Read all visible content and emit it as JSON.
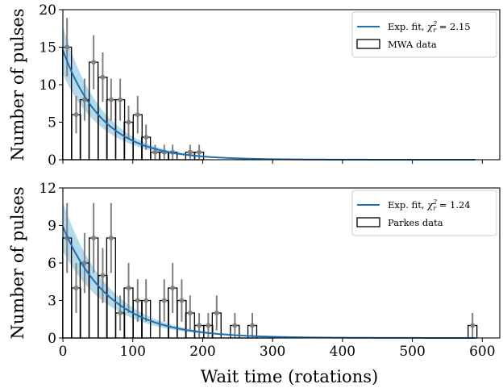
{
  "chart_data": [
    {
      "type": "bar",
      "panel": "top",
      "xlabel": "",
      "ylabel": "Number of pulses",
      "xlim": [
        0,
        625
      ],
      "ylim": [
        0,
        20
      ],
      "yticks": [
        "0",
        "5",
        "10",
        "15",
        "20"
      ],
      "bin_width": 12.6,
      "bins": {
        "x": [
          6,
          19,
          31,
          44,
          57,
          69,
          82,
          94,
          107,
          119,
          132,
          145,
          157,
          170,
          182,
          195
        ],
        "values": [
          15,
          6,
          8,
          13,
          11,
          8,
          8,
          5,
          6,
          3,
          1,
          1,
          1,
          0,
          1,
          1
        ],
        "errors": [
          3.9,
          2.5,
          2.8,
          3.6,
          3.3,
          2.8,
          2.8,
          2.2,
          2.5,
          1.7,
          1,
          1,
          1,
          0,
          1,
          1
        ]
      },
      "fit": {
        "amplitude": 14.6,
        "scale": 57.0,
        "band_fraction": 0.22,
        "x_end": 590
      },
      "legend": {
        "position": "upper right",
        "fit_label": "Exp. fit, ",
        "fit_chi": "2.15",
        "data_label": "MWA data"
      },
      "colors": {
        "fit": "#1f6fb2",
        "band": "#a7d3ea",
        "steps": "#000000",
        "points": "#808080"
      }
    },
    {
      "type": "bar",
      "panel": "bottom",
      "xlabel": "Wait time (rotations)",
      "ylabel": "Number of pulses",
      "xlim": [
        0,
        625
      ],
      "ylim": [
        0,
        12
      ],
      "yticks": [
        "0",
        "3",
        "6",
        "9",
        "12"
      ],
      "xticks": [
        "0",
        "100",
        "200",
        "300",
        "400",
        "500",
        "600"
      ],
      "bin_width": 12.6,
      "bins": {
        "x": [
          6,
          19,
          31,
          44,
          57,
          69,
          82,
          94,
          107,
          119,
          132,
          145,
          157,
          170,
          182,
          195,
          208,
          220,
          233,
          246,
          258,
          271,
          283,
          296,
          586
        ],
        "values": [
          8,
          4,
          6,
          8,
          5,
          8,
          2,
          4,
          3,
          3,
          0,
          3,
          4,
          3,
          2,
          1,
          1,
          2,
          0,
          1,
          0,
          1,
          0,
          0,
          1
        ],
        "errors": [
          2.8,
          2,
          2.4,
          2.8,
          2.2,
          2.8,
          1.4,
          2,
          1.7,
          1.7,
          0,
          1.7,
          2,
          1.7,
          1.4,
          1,
          1,
          1.4,
          0,
          1,
          0,
          1,
          0,
          0,
          1
        ]
      },
      "fit": {
        "amplitude": 8.9,
        "scale": 67.0,
        "band_fraction": 0.22,
        "x_end": 590
      },
      "legend": {
        "position": "upper right",
        "fit_label": "Exp. fit, ",
        "fit_chi": "1.24",
        "data_label": "Parkes data"
      },
      "colors": {
        "fit": "#1f6fb2",
        "band": "#a7d3ea",
        "steps": "#000000",
        "points": "#808080"
      }
    }
  ]
}
